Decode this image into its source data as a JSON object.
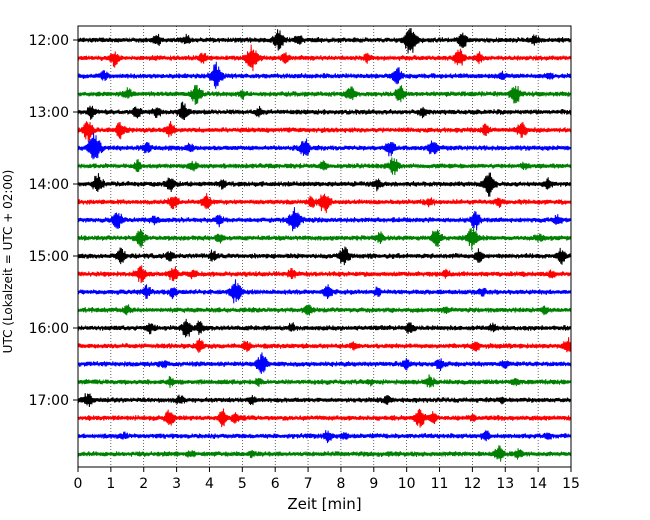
{
  "chart_data": {
    "type": "line",
    "title": "",
    "xlabel": "Zeit  [min]",
    "ylabel": "UTC (Lokalzeit = UTC + 02:00)",
    "xlim": [
      0,
      15
    ],
    "x_ticks": [
      0,
      1,
      2,
      3,
      4,
      5,
      6,
      7,
      8,
      9,
      10,
      11,
      12,
      13,
      14,
      15
    ],
    "x_tick_labels": [
      "0",
      "1",
      "2",
      "3",
      "4",
      "5",
      "6",
      "7",
      "8",
      "9",
      "10",
      "11",
      "12",
      "13",
      "14",
      "15"
    ],
    "y_tick_labels": [
      "12:00",
      "13:00",
      "14:00",
      "15:00",
      "16:00",
      "17:00"
    ],
    "trace_interval_minutes": 15,
    "trace_count": 24,
    "color_cycle": [
      "#000000",
      "#ff0000",
      "#0000ff",
      "#008000"
    ],
    "grid": "vertical dotted",
    "legend": "none",
    "series": [
      {
        "start": "12:00",
        "events": [
          [
            2.4,
            0.6
          ],
          [
            3.3,
            0.5
          ],
          [
            6.1,
            1.0
          ],
          [
            6.7,
            0.5
          ],
          [
            10.1,
            1.6
          ],
          [
            11.7,
            0.8
          ],
          [
            13.9,
            0.5
          ]
        ]
      },
      {
        "start": "12:15",
        "events": [
          [
            1.1,
            0.8
          ],
          [
            3.8,
            0.5
          ],
          [
            5.3,
            1.3
          ],
          [
            6.3,
            0.5
          ],
          [
            8.8,
            0.4
          ],
          [
            11.6,
            0.9
          ],
          [
            12.2,
            0.5
          ]
        ]
      },
      {
        "start": "12:30",
        "events": [
          [
            0.8,
            0.4
          ],
          [
            4.2,
            1.3
          ],
          [
            9.7,
            0.9
          ],
          [
            12.9,
            0.4
          ],
          [
            14.3,
            0.3
          ]
        ]
      },
      {
        "start": "12:45",
        "events": [
          [
            1.5,
            0.6
          ],
          [
            3.6,
            1.0
          ],
          [
            5.0,
            0.4
          ],
          [
            8.3,
            0.8
          ],
          [
            9.8,
            0.8
          ],
          [
            13.3,
            1.0
          ]
        ]
      },
      {
        "start": "13:00",
        "events": [
          [
            0.4,
            0.7
          ],
          [
            1.8,
            0.6
          ],
          [
            2.4,
            0.5
          ],
          [
            3.2,
            0.9
          ],
          [
            5.5,
            0.4
          ],
          [
            10.5,
            0.4
          ]
        ]
      },
      {
        "start": "13:15",
        "events": [
          [
            0.3,
            1.0
          ],
          [
            1.3,
            0.8
          ],
          [
            2.8,
            0.8
          ],
          [
            12.4,
            0.5
          ],
          [
            13.5,
            0.9
          ]
        ]
      },
      {
        "start": "13:30",
        "events": [
          [
            0.5,
            1.5
          ],
          [
            2.1,
            0.5
          ],
          [
            3.4,
            0.4
          ],
          [
            6.9,
            0.9
          ],
          [
            9.5,
            0.7
          ],
          [
            10.8,
            0.8
          ]
        ]
      },
      {
        "start": "13:45",
        "events": [
          [
            1.8,
            0.5
          ],
          [
            3.5,
            0.4
          ],
          [
            7.5,
            0.5
          ],
          [
            9.6,
            0.9
          ],
          [
            13.6,
            0.3
          ]
        ]
      },
      {
        "start": "14:00",
        "events": [
          [
            0.6,
            1.0
          ],
          [
            2.8,
            0.7
          ],
          [
            4.4,
            0.4
          ],
          [
            9.1,
            0.5
          ],
          [
            12.5,
            1.2
          ],
          [
            14.3,
            0.5
          ]
        ]
      },
      {
        "start": "14:15",
        "events": [
          [
            2.9,
            0.8
          ],
          [
            3.9,
            0.7
          ],
          [
            7.5,
            1.1
          ],
          [
            7.1,
            0.5
          ],
          [
            10.7,
            0.5
          ],
          [
            12.8,
            0.4
          ]
        ]
      },
      {
        "start": "14:30",
        "events": [
          [
            1.2,
            0.9
          ],
          [
            2.3,
            0.4
          ],
          [
            4.3,
            0.5
          ],
          [
            6.6,
            1.3
          ],
          [
            12.1,
            0.9
          ],
          [
            14.6,
            0.5
          ]
        ]
      },
      {
        "start": "14:45",
        "events": [
          [
            1.9,
            0.8
          ],
          [
            4.3,
            0.4
          ],
          [
            9.2,
            0.5
          ],
          [
            10.9,
            1.0
          ],
          [
            12.0,
            1.1
          ],
          [
            14.0,
            0.4
          ]
        ]
      },
      {
        "start": "15:00",
        "events": [
          [
            1.3,
            0.7
          ],
          [
            2.8,
            0.5
          ],
          [
            4.1,
            0.5
          ],
          [
            8.1,
            1.0
          ],
          [
            12.2,
            0.6
          ],
          [
            14.7,
            0.7
          ]
        ]
      },
      {
        "start": "15:15",
        "events": [
          [
            1.9,
            0.9
          ],
          [
            2.9,
            0.8
          ],
          [
            3.5,
            0.4
          ],
          [
            6.5,
            0.5
          ],
          [
            11.2,
            0.4
          ],
          [
            14.4,
            0.3
          ]
        ]
      },
      {
        "start": "15:30",
        "events": [
          [
            2.1,
            0.6
          ],
          [
            2.9,
            0.5
          ],
          [
            4.8,
            1.2
          ],
          [
            7.6,
            0.7
          ],
          [
            9.1,
            0.4
          ],
          [
            12.3,
            0.4
          ]
        ]
      },
      {
        "start": "15:45",
        "events": [
          [
            1.5,
            0.4
          ],
          [
            7.0,
            0.5
          ],
          [
            11.2,
            0.3
          ],
          [
            14.2,
            0.3
          ]
        ]
      },
      {
        "start": "16:00",
        "events": [
          [
            2.2,
            0.5
          ],
          [
            3.3,
            1.0
          ],
          [
            3.7,
            0.6
          ],
          [
            6.5,
            0.4
          ],
          [
            10.1,
            0.6
          ],
          [
            12.6,
            0.4
          ]
        ]
      },
      {
        "start": "16:15",
        "events": [
          [
            3.7,
            0.6
          ],
          [
            5.1,
            0.5
          ],
          [
            8.4,
            0.4
          ],
          [
            12.1,
            0.5
          ],
          [
            14.9,
            0.7
          ]
        ]
      },
      {
        "start": "16:30",
        "events": [
          [
            2.6,
            0.4
          ],
          [
            5.6,
            1.0
          ],
          [
            10.0,
            0.5
          ],
          [
            11.0,
            0.6
          ],
          [
            13.0,
            0.3
          ]
        ]
      },
      {
        "start": "16:45",
        "events": [
          [
            2.8,
            0.4
          ],
          [
            5.5,
            0.3
          ],
          [
            8.9,
            0.3
          ],
          [
            10.7,
            0.6
          ],
          [
            13.3,
            0.3
          ]
        ]
      },
      {
        "start": "17:00",
        "events": [
          [
            0.3,
            0.7
          ],
          [
            3.1,
            0.4
          ],
          [
            5.3,
            0.4
          ],
          [
            9.4,
            0.4
          ],
          [
            12.9,
            0.3
          ]
        ]
      },
      {
        "start": "17:15",
        "events": [
          [
            2.8,
            0.8
          ],
          [
            4.4,
            0.8
          ],
          [
            4.8,
            0.5
          ],
          [
            10.4,
            1.0
          ],
          [
            10.8,
            0.5
          ],
          [
            12.0,
            0.3
          ]
        ]
      },
      {
        "start": "17:30",
        "events": [
          [
            1.4,
            0.3
          ],
          [
            7.6,
            0.6
          ],
          [
            8.1,
            0.3
          ],
          [
            12.4,
            0.5
          ],
          [
            14.3,
            0.3
          ]
        ]
      },
      {
        "start": "17:45",
        "events": [
          [
            3.4,
            0.3
          ],
          [
            5.3,
            0.3
          ],
          [
            12.8,
            0.8
          ],
          [
            13.4,
            0.4
          ]
        ]
      }
    ]
  }
}
